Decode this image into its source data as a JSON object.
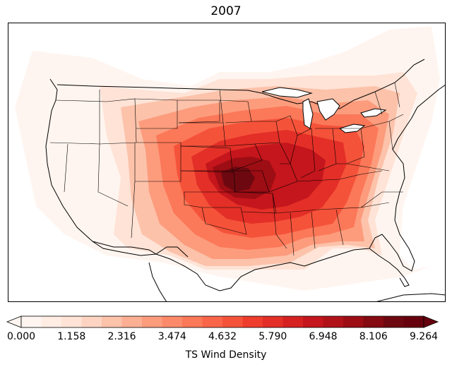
{
  "title": "2007",
  "colorbar": {
    "label": "TS Wind Density",
    "min": 0.0,
    "max": 9.264,
    "ticks": [
      "0.000",
      "1.158",
      "2.316",
      "3.474",
      "4.632",
      "5.790",
      "6.948",
      "8.106",
      "9.264"
    ],
    "extend": "both",
    "colormap": "Reds",
    "levels": 24,
    "colors": [
      "#fff5f0",
      "#ffece3",
      "#fee3d6",
      "#fdd4c2",
      "#fcc2aa",
      "#fcaf93",
      "#fc9c7d",
      "#fc8a6a",
      "#fb7858",
      "#f96548",
      "#f5523a",
      "#ee3d2c",
      "#e32f27",
      "#d52221",
      "#c4161c",
      "#b11218",
      "#9d0d14",
      "#850a11",
      "#6e0810",
      "#67000d"
    ]
  },
  "map": {
    "region": "Contiguous United States",
    "boundaries": "states and coastlines",
    "peak_location": "northeastern Kansas"
  }
}
